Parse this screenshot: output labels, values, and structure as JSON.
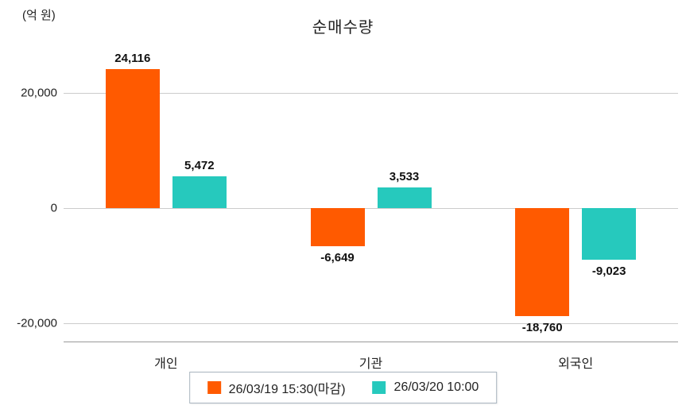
{
  "chart_data": {
    "type": "bar",
    "title": "순매수량",
    "unit_label": "(억 원)",
    "categories": [
      "개인",
      "기관",
      "외국인"
    ],
    "series": [
      {
        "name": "26/03/19 15:30(마감)",
        "color": "#ff5a00",
        "values": [
          24116,
          -6649,
          -18760
        ]
      },
      {
        "name": "26/03/20 10:00",
        "color": "#26c9bd",
        "values": [
          5472,
          3533,
          -9023
        ]
      }
    ],
    "yticks": [
      20000,
      0,
      -20000
    ],
    "ylim": [
      -23200,
      28500
    ],
    "grid": "horizontal",
    "legend_position": "bottom-center"
  }
}
